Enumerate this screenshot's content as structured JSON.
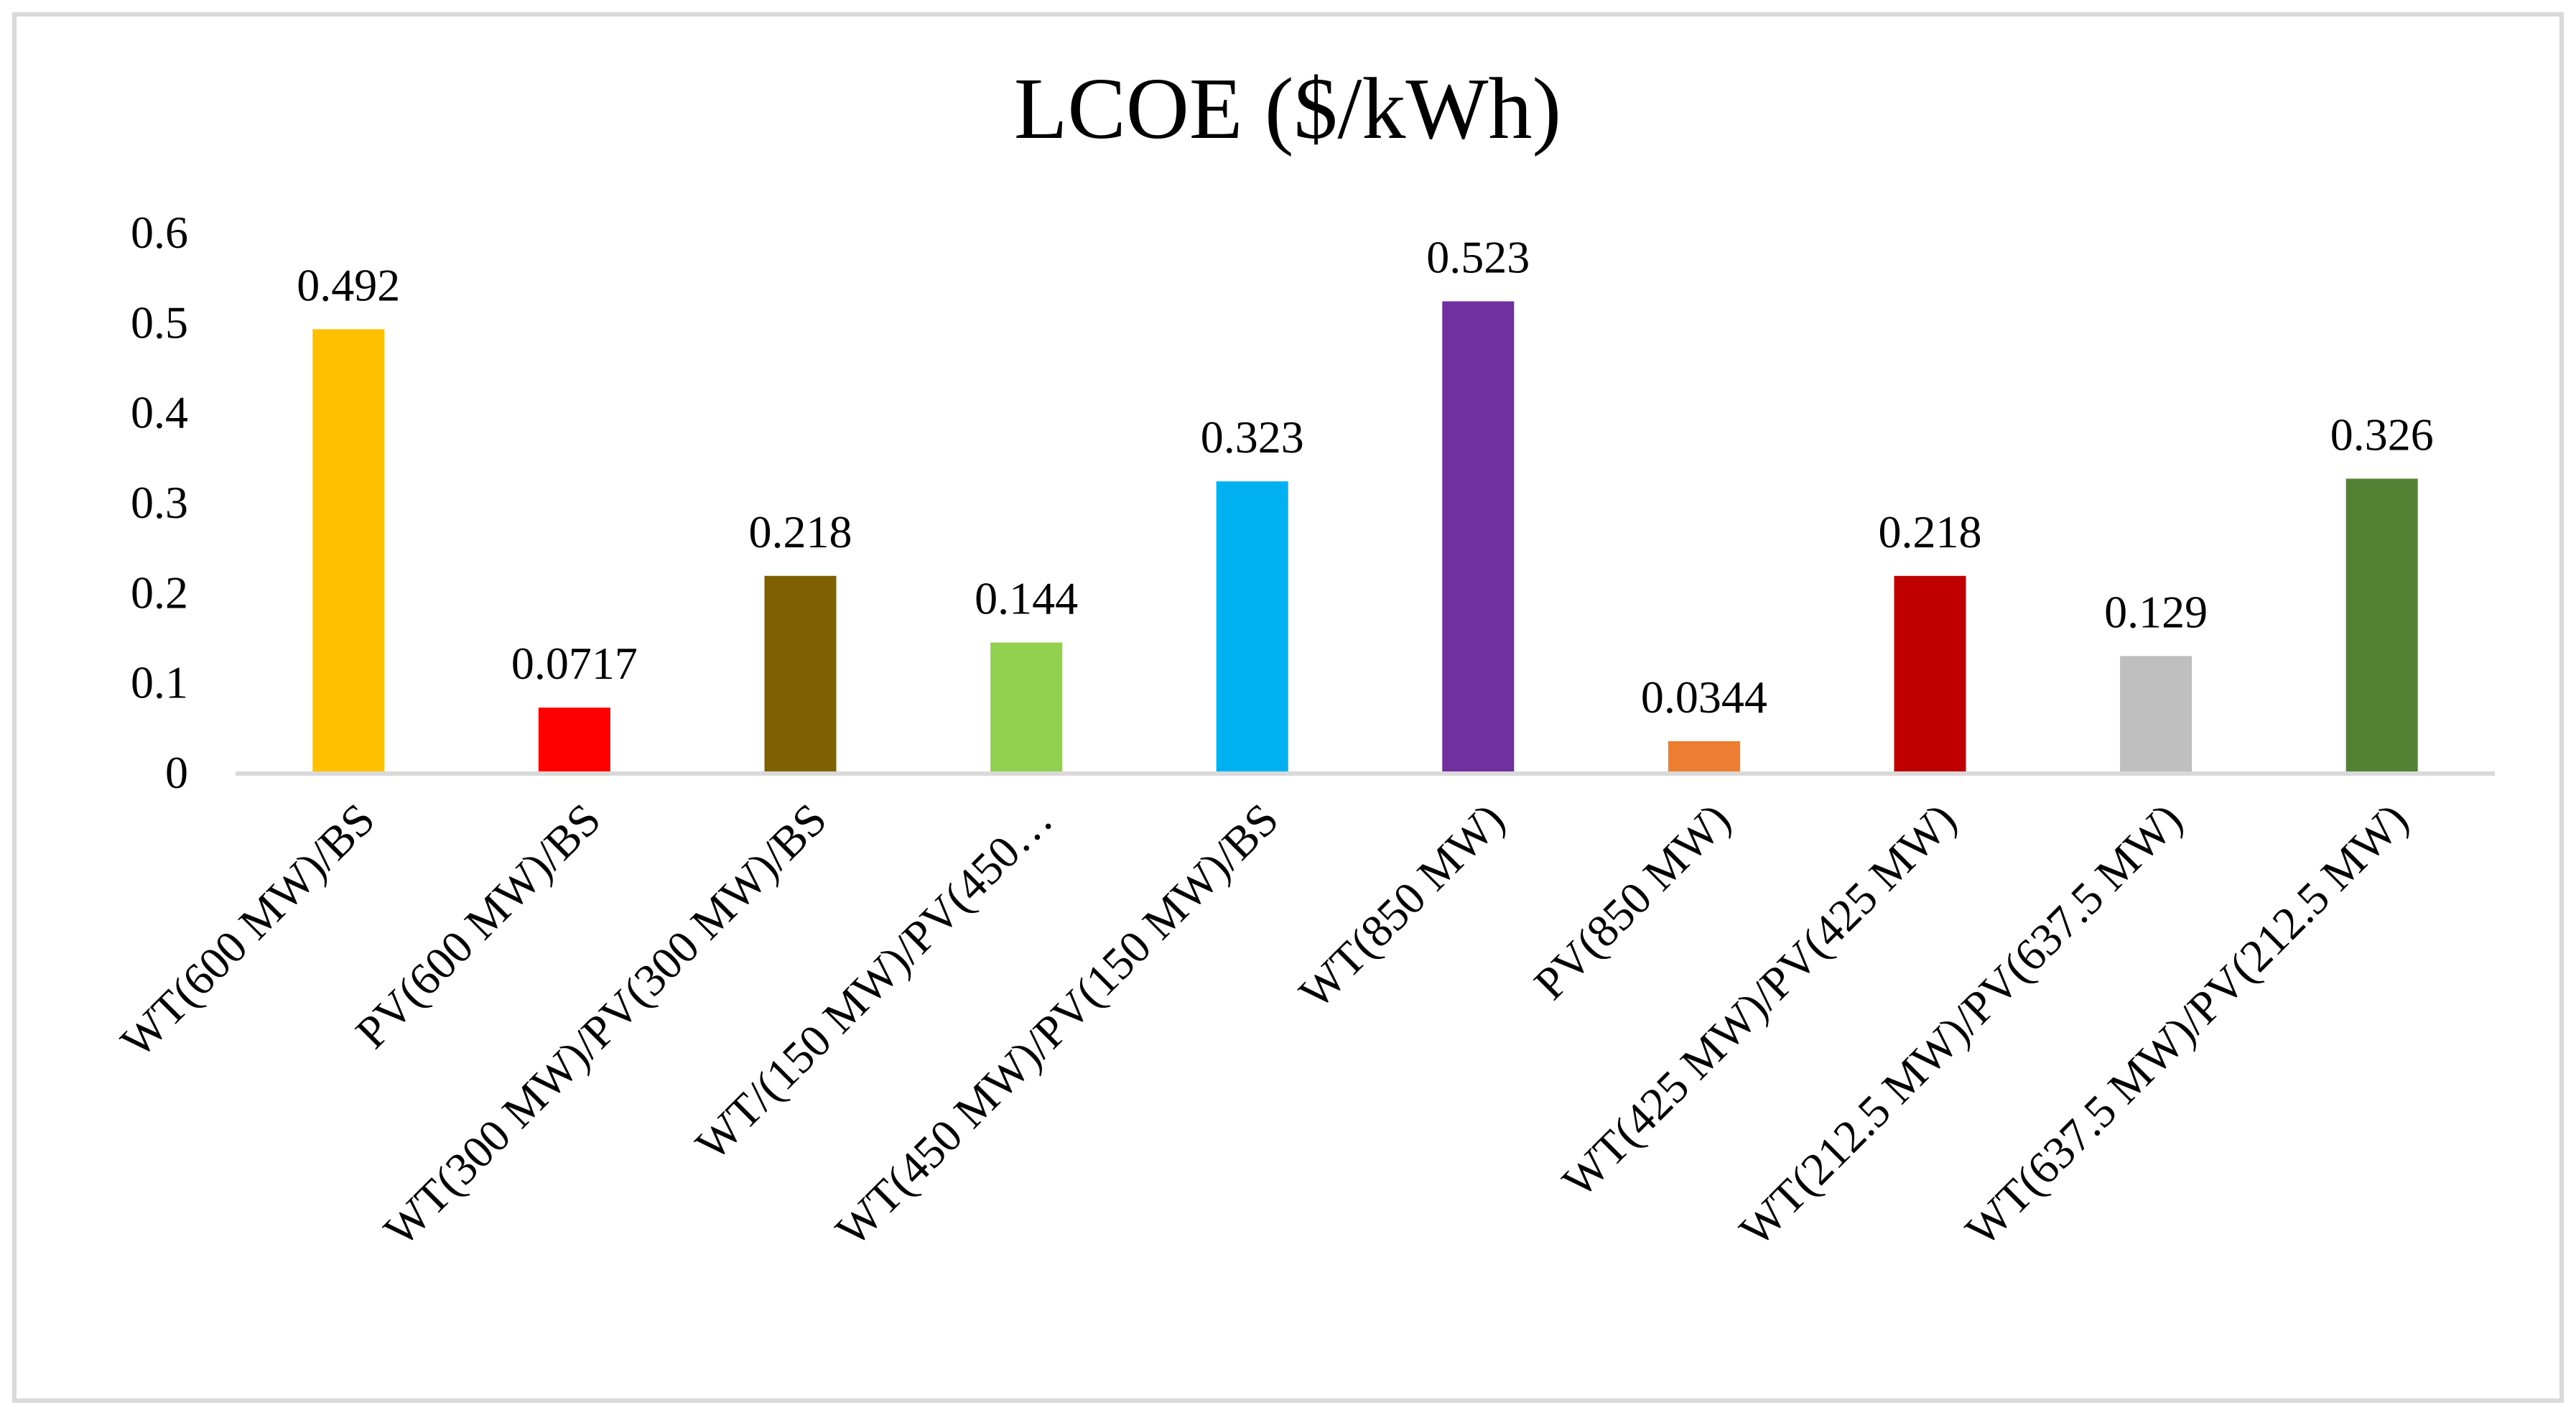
{
  "chart_data": {
    "type": "bar",
    "title": "LCOE ($/kWh)",
    "xlabel": "",
    "ylabel": "",
    "ylim": [
      0,
      0.6
    ],
    "yticks": [
      "0",
      "0.1",
      "0.2",
      "0.3",
      "0.4",
      "0.5",
      "0.6"
    ],
    "grid": false,
    "legend": "none",
    "categories": [
      "WT(600 MW)/BS",
      "PV(600 MW)/BS",
      "WT(300 MW)/PV(300 MW)/BS",
      "WT/(150 MW)/PV(450…",
      "WT(450 MW)/PV(150 MW)/BS",
      "WT(850 MW)",
      "PV(850 MW)",
      "WT(425 MW)/PV(425 MW)",
      "WT(212.5 MW)/PV(637.5 MW)",
      "WT(637.5 MW)/PV(212.5 MW)"
    ],
    "values": [
      0.492,
      0.0717,
      0.218,
      0.144,
      0.323,
      0.523,
      0.0344,
      0.218,
      0.129,
      0.326
    ],
    "data_labels": [
      "0.492",
      "0.0717",
      "0.218",
      "0.144",
      "0.323",
      "0.523",
      "0.0344",
      "0.218",
      "0.129",
      "0.326"
    ],
    "colors": [
      "#FFC000",
      "#FF0000",
      "#7F6000",
      "#92D050",
      "#00B0F0",
      "#7030A0",
      "#ED7D31",
      "#C00000",
      "#BFBFBF",
      "#548235"
    ]
  }
}
